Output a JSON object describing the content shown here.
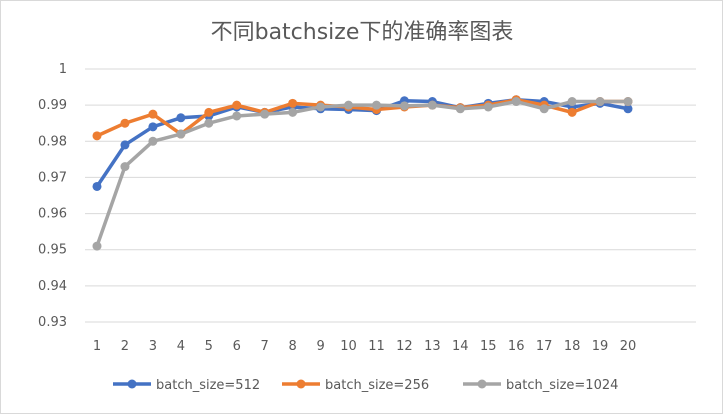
{
  "chart_data": {
    "type": "line",
    "title": "不同batchsize下的准确率图表",
    "xlabel": "",
    "ylabel": "",
    "x": [
      1,
      2,
      3,
      4,
      5,
      6,
      7,
      8,
      9,
      10,
      11,
      12,
      13,
      14,
      15,
      16,
      17,
      18,
      19,
      20
    ],
    "ylim": [
      0.93,
      1
    ],
    "yticks": [
      "0.93",
      "0.94",
      "0.95",
      "0.96",
      "0.97",
      "0.98",
      "0.99",
      "1"
    ],
    "grid": true,
    "legend_position": "bottom",
    "series": [
      {
        "name": "batch_size=512",
        "color": "#4472C4",
        "values": [
          0.9675,
          0.979,
          0.984,
          0.9865,
          0.987,
          0.9895,
          0.988,
          0.9895,
          0.989,
          0.9888,
          0.9885,
          0.9912,
          0.991,
          0.9893,
          0.9905,
          0.9915,
          0.991,
          0.9895,
          0.9905,
          0.989
        ]
      },
      {
        "name": "batch_size=256",
        "color": "#ED7D31",
        "values": [
          0.9815,
          0.985,
          0.9875,
          0.982,
          0.988,
          0.99,
          0.988,
          0.9905,
          0.99,
          0.9895,
          0.9888,
          0.9895,
          0.99,
          0.9893,
          0.99,
          0.9915,
          0.99,
          0.988,
          0.991,
          0.991
        ]
      },
      {
        "name": "batch_size=1024",
        "color": "#A5A5A5",
        "values": [
          0.951,
          0.973,
          0.98,
          0.982,
          0.985,
          0.987,
          0.9875,
          0.988,
          0.9895,
          0.99,
          0.99,
          0.9898,
          0.99,
          0.989,
          0.9895,
          0.991,
          0.989,
          0.991,
          0.991,
          0.991
        ]
      }
    ]
  }
}
